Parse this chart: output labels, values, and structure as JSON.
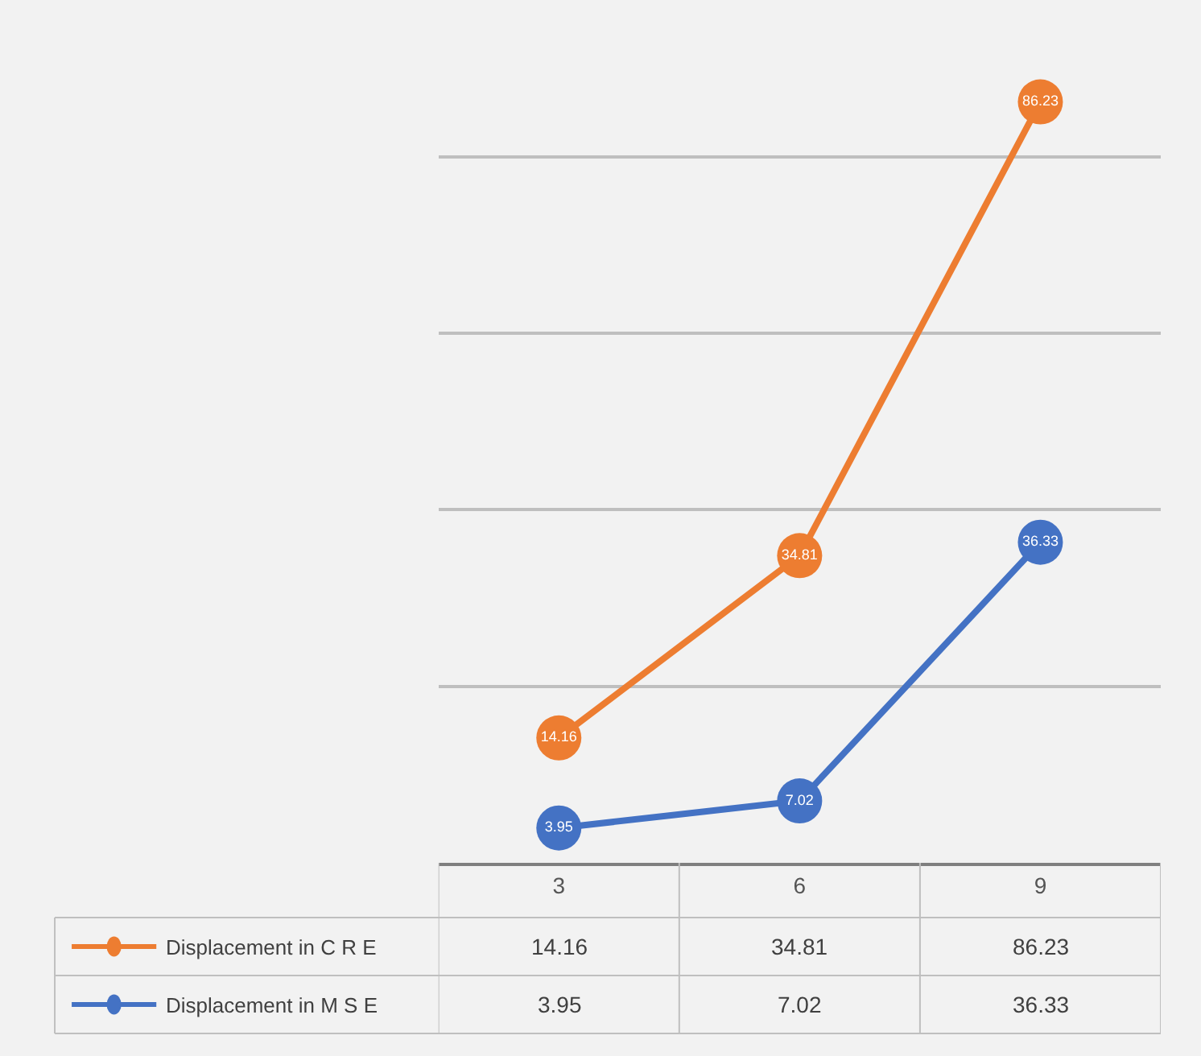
{
  "chart_data": {
    "type": "line",
    "categories": [
      "3",
      "6",
      "9"
    ],
    "series": [
      {
        "name": "Displacement in C R E",
        "color": "#ed7d31",
        "values": [
          14.16,
          34.81,
          86.23
        ],
        "value_labels": [
          "14.16",
          "34.81",
          "86.23"
        ]
      },
      {
        "name": "Displacement in M S E",
        "color": "#4472c4",
        "values": [
          3.95,
          7.02,
          36.33
        ],
        "value_labels": [
          "3.95",
          "7.02",
          "36.33"
        ]
      }
    ],
    "tick_labels": "x",
    "grid": "y",
    "marker": "circle",
    "line_style": "solid",
    "legend": "bottom left"
  }
}
